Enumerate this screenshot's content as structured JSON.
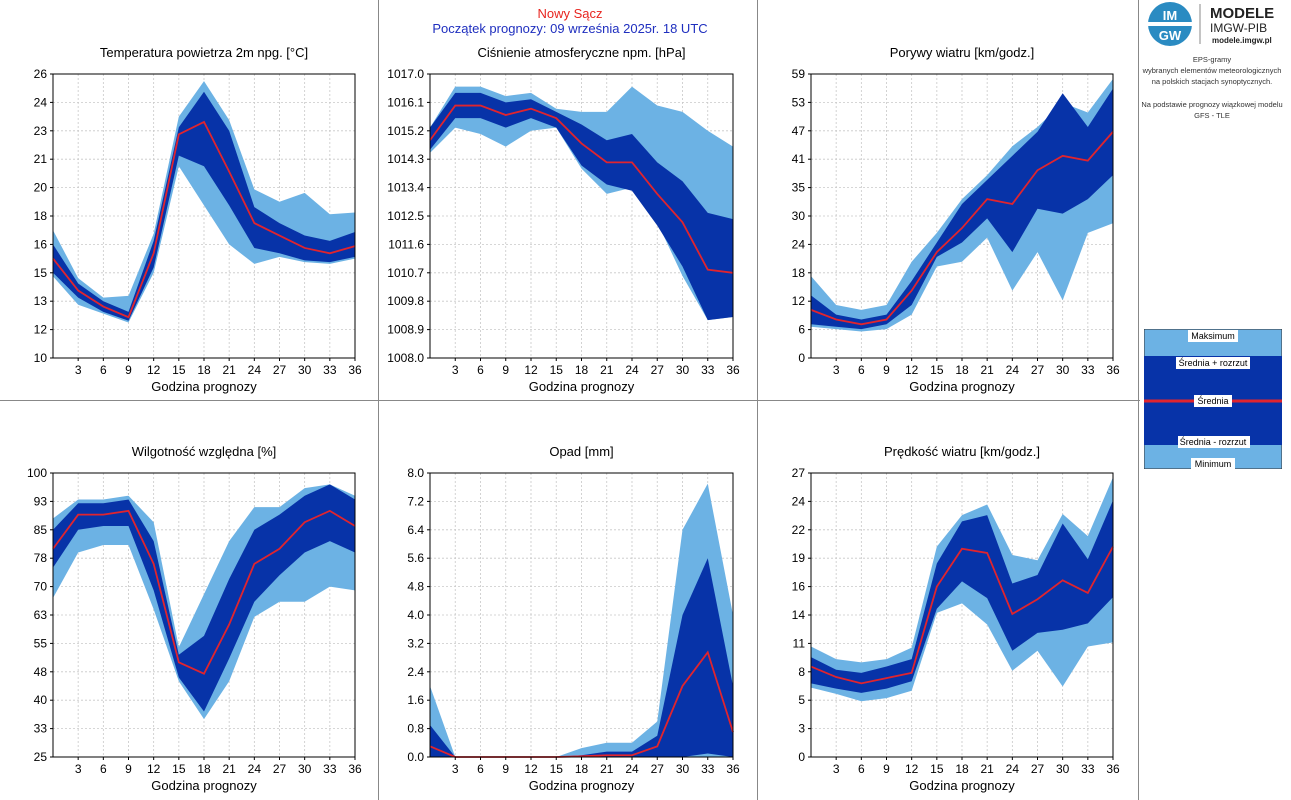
{
  "header": {
    "title": "Nowy Sącz",
    "subtitle": "Początek prognozy: 09 września 2025r. 18 UTC"
  },
  "logo": {
    "mark": "IMGW",
    "line1": "MODELE",
    "line2": "IMGW-PIB",
    "url": "modele.imgw.pl"
  },
  "info": {
    "line1": "EPS-gramy",
    "line2": "wybranych elementów meteorologicznych",
    "line3": "na polskich stacjach  synoptycznych.",
    "line4": "Na podstawie prognozy wiązkowej modelu",
    "line5": "GFS - TLE"
  },
  "legend": {
    "max": "Maksimum",
    "mean_plus": "Średnia + rozrzut",
    "mean": "Średnia",
    "mean_minus": "Średnia - rozrzut",
    "min": "Minimum"
  },
  "colors": {
    "minmax": "#6cb2e4",
    "spread": "#0733a8",
    "mean": "#e0242e",
    "grid": "#c8c8c8",
    "frame": "#000000",
    "header_title": "#e8251f",
    "header_subtitle": "#1f2fbf"
  },
  "chart_data": [
    {
      "id": "temp",
      "type": "area",
      "title": "Temperatura powietrza 2m npg. [°C]",
      "xlabel": "Godzina prognozy",
      "ylabel": "",
      "ylim": [
        10,
        26
      ],
      "yticks": [
        "10",
        "12",
        "13",
        "15",
        "16",
        "18",
        "20",
        "21",
        "23",
        "24",
        "26"
      ],
      "xticks": [
        3,
        6,
        9,
        12,
        15,
        18,
        21,
        24,
        27,
        30,
        33,
        36
      ],
      "x": [
        0,
        3,
        6,
        9,
        12,
        15,
        18,
        21,
        24,
        27,
        30,
        33,
        36
      ],
      "series": [
        {
          "name": "Maksimum",
          "values": [
            17.2,
            14.5,
            13.4,
            13.5,
            17.0,
            23.6,
            25.6,
            23.4,
            19.5,
            18.8,
            19.3,
            18.1,
            18.2
          ]
        },
        {
          "name": "Średnia + rozrzut",
          "values": [
            16.4,
            14.2,
            13.2,
            12.6,
            16.6,
            23.0,
            25.0,
            22.8,
            18.5,
            17.6,
            16.9,
            16.6,
            17.1
          ]
        },
        {
          "name": "Średnia",
          "values": [
            15.6,
            13.8,
            12.9,
            12.3,
            15.9,
            22.6,
            23.3,
            20.5,
            17.6,
            16.9,
            16.2,
            15.9,
            16.3
          ]
        },
        {
          "name": "Średnia - rozrzut",
          "values": [
            14.8,
            13.4,
            12.6,
            12.1,
            15.1,
            21.4,
            20.8,
            18.6,
            16.2,
            15.9,
            15.5,
            15.4,
            15.7
          ]
        },
        {
          "name": "Minimum",
          "values": [
            14.6,
            13.0,
            12.5,
            12.0,
            14.8,
            20.8,
            18.6,
            16.4,
            15.3,
            15.7,
            15.4,
            15.3,
            15.6
          ]
        }
      ]
    },
    {
      "id": "pressure",
      "type": "area",
      "title": "Ciśnienie atmosferyczne npm. [hPa]",
      "xlabel": "Godzina prognozy",
      "ylabel": "",
      "ylim": [
        1008.0,
        1017.0
      ],
      "yticks": [
        "1008.0",
        "1008.9",
        "1009.8",
        "1010.7",
        "1011.6",
        "1012.5",
        "1013.4",
        "1014.3",
        "1015.2",
        "1016.1",
        "1017.0"
      ],
      "xticks": [
        3,
        6,
        9,
        12,
        15,
        18,
        21,
        24,
        27,
        30,
        33,
        36
      ],
      "x": [
        0,
        3,
        6,
        9,
        12,
        15,
        18,
        21,
        24,
        27,
        30,
        33,
        36
      ],
      "series": [
        {
          "name": "Maksimum",
          "values": [
            1015.3,
            1016.6,
            1016.6,
            1016.3,
            1016.4,
            1015.9,
            1015.8,
            1015.8,
            1016.6,
            1016.0,
            1015.8,
            1015.2,
            1014.7
          ]
        },
        {
          "name": "Średnia + rozrzut",
          "values": [
            1015.3,
            1016.4,
            1016.4,
            1016.1,
            1016.2,
            1015.8,
            1015.4,
            1014.9,
            1015.1,
            1014.2,
            1013.6,
            1012.6,
            1012.4
          ]
        },
        {
          "name": "Średnia",
          "values": [
            1014.9,
            1016.0,
            1016.0,
            1015.7,
            1015.9,
            1015.6,
            1014.8,
            1014.2,
            1014.2,
            1013.2,
            1012.3,
            1010.8,
            1010.7
          ]
        },
        {
          "name": "Średnia - rozrzut",
          "values": [
            1014.6,
            1015.6,
            1015.6,
            1015.3,
            1015.6,
            1015.3,
            1014.1,
            1013.5,
            1013.3,
            1012.2,
            1010.9,
            1009.2,
            1009.3
          ]
        },
        {
          "name": "Minimum",
          "values": [
            1014.5,
            1015.3,
            1015.1,
            1014.7,
            1015.2,
            1015.3,
            1014.0,
            1013.2,
            1013.4,
            1012.3,
            1010.6,
            1009.2,
            1009.3
          ]
        }
      ]
    },
    {
      "id": "gusts",
      "type": "area",
      "title": "Porywy wiatru [km/godz.]",
      "xlabel": "Godzina prognozy",
      "ylabel": "",
      "ylim": [
        0,
        59
      ],
      "yticks": [
        "0",
        "6",
        "12",
        "18",
        "24",
        "30",
        "35",
        "41",
        "47",
        "53",
        "59"
      ],
      "xticks": [
        3,
        6,
        9,
        12,
        15,
        18,
        21,
        24,
        27,
        30,
        33,
        36
      ],
      "x": [
        0,
        3,
        6,
        9,
        12,
        15,
        18,
        21,
        24,
        27,
        30,
        33,
        36
      ],
      "series": [
        {
          "name": "Maksimum",
          "values": [
            17,
            11,
            10,
            11,
            20,
            26,
            33,
            38,
            44,
            48,
            53,
            51,
            58
          ]
        },
        {
          "name": "Średnia + rozrzut",
          "values": [
            13,
            9,
            8,
            9,
            16,
            24,
            32,
            37,
            42,
            47,
            55,
            48,
            56
          ]
        },
        {
          "name": "Średnia",
          "values": [
            10,
            8,
            7,
            8,
            14,
            22,
            27,
            33,
            32,
            39,
            42,
            41,
            47
          ]
        },
        {
          "name": "Średnia - rozrzut",
          "values": [
            7,
            6.5,
            6,
            7,
            11,
            21,
            24,
            29,
            22,
            31,
            30,
            33,
            38
          ]
        },
        {
          "name": "Minimum",
          "values": [
            6.5,
            6,
            5.5,
            6,
            9,
            19,
            20,
            25,
            14,
            22,
            12,
            26,
            28
          ]
        }
      ]
    },
    {
      "id": "humidity",
      "type": "area",
      "title": "Wilgotność względna [%]",
      "xlabel": "Godzina prognozy",
      "ylabel": "",
      "ylim": [
        25,
        100
      ],
      "yticks": [
        "25",
        "33",
        "40",
        "48",
        "55",
        "63",
        "70",
        "78",
        "85",
        "93",
        "100"
      ],
      "xticks": [
        3,
        6,
        9,
        12,
        15,
        18,
        21,
        24,
        27,
        30,
        33,
        36
      ],
      "x": [
        0,
        3,
        6,
        9,
        12,
        15,
        18,
        21,
        24,
        27,
        30,
        33,
        36
      ],
      "series": [
        {
          "name": "Maksimum",
          "values": [
            88,
            93,
            93,
            94,
            87,
            54,
            68,
            82,
            91,
            91,
            96,
            97,
            94
          ]
        },
        {
          "name": "Średnia + rozrzut",
          "values": [
            85,
            92,
            92,
            93,
            82,
            52,
            57,
            72,
            85,
            89,
            94,
            97,
            93
          ]
        },
        {
          "name": "Średnia",
          "values": [
            80,
            89,
            89,
            90,
            76,
            50,
            47,
            60,
            76,
            80,
            87,
            90,
            86
          ]
        },
        {
          "name": "Średnia - rozrzut",
          "values": [
            75,
            85,
            86,
            86,
            69,
            46,
            37,
            51,
            66,
            73,
            79,
            82,
            79
          ]
        },
        {
          "name": "Minimum",
          "values": [
            67,
            79,
            81,
            81,
            64,
            45,
            35,
            45,
            62,
            66,
            66,
            70,
            69
          ]
        }
      ]
    },
    {
      "id": "precip",
      "type": "area",
      "title": "Opad [mm]",
      "xlabel": "Godzina prognozy",
      "ylabel": "",
      "ylim": [
        0,
        8
      ],
      "yticks": [
        "0.0",
        "0.8",
        "1.6",
        "2.4",
        "3.2",
        "4.0",
        "4.8",
        "5.6",
        "6.4",
        "7.2",
        "8.0"
      ],
      "xticks": [
        3,
        6,
        9,
        12,
        15,
        18,
        21,
        24,
        27,
        30,
        33,
        36
      ],
      "x": [
        0,
        3,
        6,
        9,
        12,
        15,
        18,
        21,
        24,
        27,
        30,
        33,
        36
      ],
      "series": [
        {
          "name": "Maksimum",
          "values": [
            2.0,
            0,
            0,
            0,
            0,
            0,
            0.25,
            0.4,
            0.4,
            1.0,
            6.4,
            7.7,
            4.0
          ]
        },
        {
          "name": "Średnia + rozrzut",
          "values": [
            0.9,
            0,
            0,
            0,
            0,
            0,
            0.05,
            0.15,
            0.15,
            0.6,
            4.0,
            5.6,
            2.0
          ]
        },
        {
          "name": "Średnia",
          "values": [
            0.3,
            0,
            0,
            0,
            0,
            0,
            0.02,
            0.05,
            0.05,
            0.3,
            2.0,
            2.95,
            0.7
          ]
        },
        {
          "name": "Średnia - rozrzut",
          "values": [
            0,
            0,
            0,
            0,
            0,
            0,
            0,
            0,
            0,
            0,
            0,
            0.1,
            0
          ]
        },
        {
          "name": "Minimum",
          "values": [
            0,
            0,
            0,
            0,
            0,
            0,
            0,
            0,
            0,
            0,
            0,
            0,
            0
          ]
        }
      ]
    },
    {
      "id": "wind",
      "type": "area",
      "title": "Prędkość wiatru [km/godz.]",
      "xlabel": "Godzina prognozy",
      "ylabel": "",
      "ylim": [
        0,
        27
      ],
      "yticks": [
        "0",
        "3",
        "5",
        "8",
        "11",
        "14",
        "16",
        "19",
        "22",
        "24",
        "27"
      ],
      "xticks": [
        3,
        6,
        9,
        12,
        15,
        18,
        21,
        24,
        27,
        30,
        33,
        36
      ],
      "x": [
        0,
        3,
        6,
        9,
        12,
        15,
        18,
        21,
        24,
        27,
        30,
        33,
        36
      ],
      "series": [
        {
          "name": "Maksimum",
          "values": [
            10.5,
            9.3,
            9.0,
            9.3,
            10.4,
            20.0,
            23.0,
            24.0,
            19.2,
            18.7,
            23.1,
            21.0,
            26.6
          ]
        },
        {
          "name": "Średnia + rozrzut",
          "values": [
            9.5,
            8.3,
            8.0,
            8.6,
            9.3,
            18.4,
            22.4,
            23.0,
            16.5,
            17.3,
            22.2,
            18.8,
            24.4
          ]
        },
        {
          "name": "Średnia",
          "values": [
            8.6,
            7.6,
            7.0,
            7.5,
            8.0,
            16.2,
            19.8,
            19.4,
            13.6,
            15.0,
            16.8,
            15.6,
            20.0
          ]
        },
        {
          "name": "Średnia - rozrzut",
          "values": [
            7.0,
            6.5,
            6.1,
            6.5,
            7.2,
            14.1,
            16.7,
            15.1,
            10.1,
            11.8,
            12.1,
            12.7,
            15.2
          ]
        },
        {
          "name": "Minimum",
          "values": [
            6.6,
            6.0,
            5.3,
            5.6,
            6.3,
            13.7,
            14.6,
            12.6,
            8.2,
            10.1,
            6.7,
            10.5,
            10.9
          ]
        }
      ]
    }
  ]
}
